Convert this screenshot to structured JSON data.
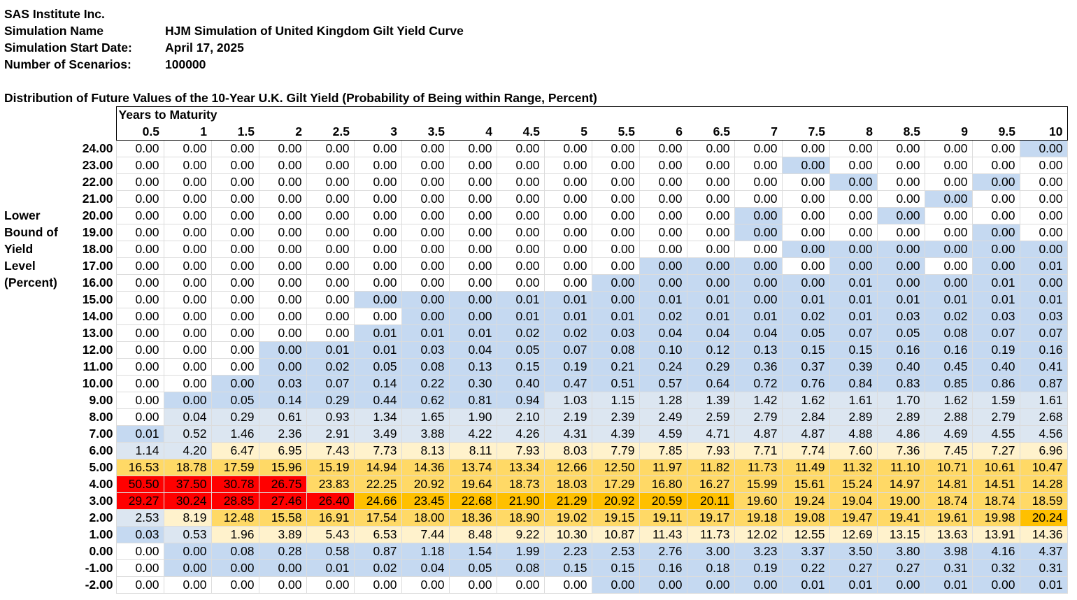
{
  "info": {
    "company": "SAS Institute Inc.",
    "rows": [
      {
        "label": "Simulation Name",
        "value": "HJM Simulation of United Kingdom Gilt Yield Curve"
      },
      {
        "label": "Simulation Start Date:",
        "value": "April 17, 2025"
      },
      {
        "label": "Number of Scenarios:",
        "value": "100000"
      }
    ]
  },
  "table_title": "Distribution of Future Values of the 10-Year U.K. Gilt Yield (Probability of Being within Range, Percent)",
  "side_label": [
    "Lower",
    "Bound of",
    "Yield",
    "Level",
    "(Percent)"
  ],
  "header_title": "Years to Maturity",
  "maturities": [
    "0.5",
    "1",
    "1.5",
    "2",
    "2.5",
    "3",
    "3.5",
    "4",
    "4.5",
    "5",
    "5.5",
    "6",
    "6.5",
    "7",
    "7.5",
    "8",
    "8.5",
    "9",
    "9.5",
    "10"
  ],
  "lower_bounds": [
    "24.00",
    "23.00",
    "22.00",
    "21.00",
    "20.00",
    "19.00",
    "18.00",
    "17.00",
    "16.00",
    "15.00",
    "14.00",
    "13.00",
    "12.00",
    "11.00",
    "10.00",
    "9.00",
    "8.00",
    "7.00",
    "6.00",
    "5.00",
    "4.00",
    "3.00",
    "2.00",
    "1.00",
    "0.00",
    "-1.00",
    "-2.00"
  ],
  "cells": [
    [
      "0.00",
      "0.00",
      "0.00",
      "0.00",
      "0.00",
      "0.00",
      "0.00",
      "0.00",
      "0.00",
      "0.00",
      "0.00",
      "0.00",
      "0.00",
      "0.00",
      "0.00",
      "0.00",
      "0.00",
      "0.00",
      "0.00",
      "0.00"
    ],
    [
      "0.00",
      "0.00",
      "0.00",
      "0.00",
      "0.00",
      "0.00",
      "0.00",
      "0.00",
      "0.00",
      "0.00",
      "0.00",
      "0.00",
      "0.00",
      "0.00",
      "0.00",
      "0.00",
      "0.00",
      "0.00",
      "0.00",
      "0.00"
    ],
    [
      "0.00",
      "0.00",
      "0.00",
      "0.00",
      "0.00",
      "0.00",
      "0.00",
      "0.00",
      "0.00",
      "0.00",
      "0.00",
      "0.00",
      "0.00",
      "0.00",
      "0.00",
      "0.00",
      "0.00",
      "0.00",
      "0.00",
      "0.00"
    ],
    [
      "0.00",
      "0.00",
      "0.00",
      "0.00",
      "0.00",
      "0.00",
      "0.00",
      "0.00",
      "0.00",
      "0.00",
      "0.00",
      "0.00",
      "0.00",
      "0.00",
      "0.00",
      "0.00",
      "0.00",
      "0.00",
      "0.00",
      "0.00"
    ],
    [
      "0.00",
      "0.00",
      "0.00",
      "0.00",
      "0.00",
      "0.00",
      "0.00",
      "0.00",
      "0.00",
      "0.00",
      "0.00",
      "0.00",
      "0.00",
      "0.00",
      "0.00",
      "0.00",
      "0.00",
      "0.00",
      "0.00",
      "0.00"
    ],
    [
      "0.00",
      "0.00",
      "0.00",
      "0.00",
      "0.00",
      "0.00",
      "0.00",
      "0.00",
      "0.00",
      "0.00",
      "0.00",
      "0.00",
      "0.00",
      "0.00",
      "0.00",
      "0.00",
      "0.00",
      "0.00",
      "0.00",
      "0.00"
    ],
    [
      "0.00",
      "0.00",
      "0.00",
      "0.00",
      "0.00",
      "0.00",
      "0.00",
      "0.00",
      "0.00",
      "0.00",
      "0.00",
      "0.00",
      "0.00",
      "0.00",
      "0.00",
      "0.00",
      "0.00",
      "0.00",
      "0.00",
      "0.00"
    ],
    [
      "0.00",
      "0.00",
      "0.00",
      "0.00",
      "0.00",
      "0.00",
      "0.00",
      "0.00",
      "0.00",
      "0.00",
      "0.00",
      "0.00",
      "0.00",
      "0.00",
      "0.00",
      "0.00",
      "0.00",
      "0.00",
      "0.00",
      "0.01"
    ],
    [
      "0.00",
      "0.00",
      "0.00",
      "0.00",
      "0.00",
      "0.00",
      "0.00",
      "0.00",
      "0.00",
      "0.00",
      "0.00",
      "0.00",
      "0.00",
      "0.00",
      "0.00",
      "0.01",
      "0.00",
      "0.00",
      "0.01",
      "0.00"
    ],
    [
      "0.00",
      "0.00",
      "0.00",
      "0.00",
      "0.00",
      "0.00",
      "0.00",
      "0.00",
      "0.01",
      "0.01",
      "0.00",
      "0.01",
      "0.01",
      "0.00",
      "0.01",
      "0.01",
      "0.01",
      "0.01",
      "0.01",
      "0.01"
    ],
    [
      "0.00",
      "0.00",
      "0.00",
      "0.00",
      "0.00",
      "0.00",
      "0.00",
      "0.00",
      "0.01",
      "0.01",
      "0.01",
      "0.02",
      "0.01",
      "0.01",
      "0.02",
      "0.01",
      "0.03",
      "0.02",
      "0.03",
      "0.03"
    ],
    [
      "0.00",
      "0.00",
      "0.00",
      "0.00",
      "0.00",
      "0.01",
      "0.01",
      "0.01",
      "0.02",
      "0.02",
      "0.03",
      "0.04",
      "0.04",
      "0.04",
      "0.05",
      "0.07",
      "0.05",
      "0.08",
      "0.07",
      "0.07"
    ],
    [
      "0.00",
      "0.00",
      "0.00",
      "0.00",
      "0.01",
      "0.01",
      "0.03",
      "0.04",
      "0.05",
      "0.07",
      "0.08",
      "0.10",
      "0.12",
      "0.13",
      "0.15",
      "0.15",
      "0.16",
      "0.16",
      "0.19",
      "0.16"
    ],
    [
      "0.00",
      "0.00",
      "0.00",
      "0.00",
      "0.02",
      "0.05",
      "0.08",
      "0.13",
      "0.15",
      "0.19",
      "0.21",
      "0.24",
      "0.29",
      "0.36",
      "0.37",
      "0.39",
      "0.40",
      "0.45",
      "0.40",
      "0.41"
    ],
    [
      "0.00",
      "0.00",
      "0.00",
      "0.03",
      "0.07",
      "0.14",
      "0.22",
      "0.30",
      "0.40",
      "0.47",
      "0.51",
      "0.57",
      "0.64",
      "0.72",
      "0.76",
      "0.84",
      "0.83",
      "0.85",
      "0.86",
      "0.87"
    ],
    [
      "0.00",
      "0.00",
      "0.05",
      "0.14",
      "0.29",
      "0.44",
      "0.62",
      "0.81",
      "0.94",
      "1.03",
      "1.15",
      "1.28",
      "1.39",
      "1.42",
      "1.62",
      "1.61",
      "1.70",
      "1.62",
      "1.59",
      "1.61"
    ],
    [
      "0.00",
      "0.04",
      "0.29",
      "0.61",
      "0.93",
      "1.34",
      "1.65",
      "1.90",
      "2.10",
      "2.19",
      "2.39",
      "2.49",
      "2.59",
      "2.79",
      "2.84",
      "2.89",
      "2.89",
      "2.88",
      "2.79",
      "2.68"
    ],
    [
      "0.01",
      "0.52",
      "1.46",
      "2.36",
      "2.91",
      "3.49",
      "3.88",
      "4.22",
      "4.26",
      "4.31",
      "4.39",
      "4.59",
      "4.71",
      "4.87",
      "4.87",
      "4.88",
      "4.86",
      "4.69",
      "4.55",
      "4.56"
    ],
    [
      "1.14",
      "4.20",
      "6.47",
      "6.95",
      "7.43",
      "7.73",
      "8.13",
      "8.11",
      "7.93",
      "8.03",
      "7.79",
      "7.85",
      "7.93",
      "7.71",
      "7.74",
      "7.60",
      "7.36",
      "7.45",
      "7.27",
      "6.96"
    ],
    [
      "16.53",
      "18.78",
      "17.59",
      "15.96",
      "15.19",
      "14.94",
      "14.36",
      "13.74",
      "13.34",
      "12.66",
      "12.50",
      "11.97",
      "11.82",
      "11.73",
      "11.49",
      "11.32",
      "11.10",
      "10.71",
      "10.61",
      "10.47"
    ],
    [
      "50.50",
      "37.50",
      "30.78",
      "26.75",
      "23.83",
      "22.25",
      "20.92",
      "19.64",
      "18.73",
      "18.03",
      "17.29",
      "16.80",
      "16.27",
      "15.99",
      "15.61",
      "15.24",
      "14.97",
      "14.81",
      "14.51",
      "14.28"
    ],
    [
      "29.27",
      "30.24",
      "28.85",
      "27.46",
      "26.40",
      "24.66",
      "23.45",
      "22.68",
      "21.90",
      "21.29",
      "20.92",
      "20.59",
      "20.11",
      "19.60",
      "19.24",
      "19.04",
      "19.00",
      "18.74",
      "18.74",
      "18.59"
    ],
    [
      "2.53",
      "8.19",
      "12.48",
      "15.58",
      "16.91",
      "17.54",
      "18.00",
      "18.36",
      "18.90",
      "19.02",
      "19.15",
      "19.11",
      "19.17",
      "19.18",
      "19.08",
      "19.47",
      "19.41",
      "19.61",
      "19.98",
      "20.24"
    ],
    [
      "0.03",
      "0.53",
      "1.96",
      "3.89",
      "5.43",
      "6.53",
      "7.44",
      "8.48",
      "9.22",
      "10.30",
      "10.87",
      "11.43",
      "11.73",
      "12.02",
      "12.55",
      "12.69",
      "13.15",
      "13.63",
      "13.91",
      "14.36"
    ],
    [
      "0.00",
      "0.00",
      "0.08",
      "0.28",
      "0.58",
      "0.87",
      "1.18",
      "1.54",
      "1.99",
      "2.23",
      "2.53",
      "2.76",
      "3.00",
      "3.23",
      "3.37",
      "3.50",
      "3.80",
      "3.98",
      "4.16",
      "4.37"
    ],
    [
      "0.00",
      "0.00",
      "0.00",
      "0.00",
      "0.01",
      "0.02",
      "0.04",
      "0.05",
      "0.08",
      "0.15",
      "0.15",
      "0.16",
      "0.18",
      "0.19",
      "0.22",
      "0.27",
      "0.27",
      "0.31",
      "0.32",
      "0.31"
    ],
    [
      "0.00",
      "0.00",
      "0.00",
      "0.00",
      "0.00",
      "0.00",
      "0.00",
      "0.00",
      "0.00",
      "0.00",
      "0.00",
      "0.00",
      "0.00",
      "0.00",
      "0.01",
      "0.01",
      "0.00",
      "0.01",
      "0.00",
      "0.01"
    ]
  ],
  "fills": [
    "WWWWWWWWWWWWWWWWWWWB",
    "WWWWWWWWWWWWWWBWWWWW",
    "WWWWWWWWWWWWWWWBWWBW",
    "WWWWWWWWWWWWWWWWWBWW",
    "WWWWWWWWWWWWWBWWBWWW",
    "WWWWWWWWWWWWWBWWWWBW",
    "WWWWWWWWWWWWWWBBBBBB",
    "WWWWWWWWWWWBBBWBBWBB",
    "WWWWWWWWWWBBBBBBBBBB",
    "WWWWWBBBBBBBBBBBBBBB",
    "WWWWWWBBBBBBBBBBBBBB",
    "WWWWWBBBBBBBBBBBBBBB",
    "WWWBBBBBBBBBBBBBBBBB",
    "WWWBBBBBBBBBBBBBBBBB",
    "WWBBBBBBBBBBBBBBBBBB",
    "WBBBBBBBBLLLLLLLLLLL",
    "WLLLLLLLLLLLLLLLLLLL",
    "BLLLLLLLLLLLLLLLLLLL",
    "LLYYYYYYYYYYYYYYYYYY",
    "OOOOOOOOOOOOOOOOOOOO",
    "RRRROOOOOOOOOOOOOOOO",
    "RRRRRDDDDDDDDOOOOOOO",
    "LYOOOOOOOOOOOOOOOOOD",
    "BLYYYYYYYYYYYYYYYYYY",
    "WBBBBBBBBBBBBBBBBBBB",
    "WBBBBBBBBBBBBBBBBBBB",
    "WWWWWWWWWWBBBBBBBBBB"
  ],
  "colors": {
    "W": "#ffffff",
    "B": "#c5d9f1",
    "L": "#dce6f1",
    "Y": "#fff2cc",
    "O": "#ffd966",
    "D": "#ffc000",
    "R": "#ff0000"
  }
}
